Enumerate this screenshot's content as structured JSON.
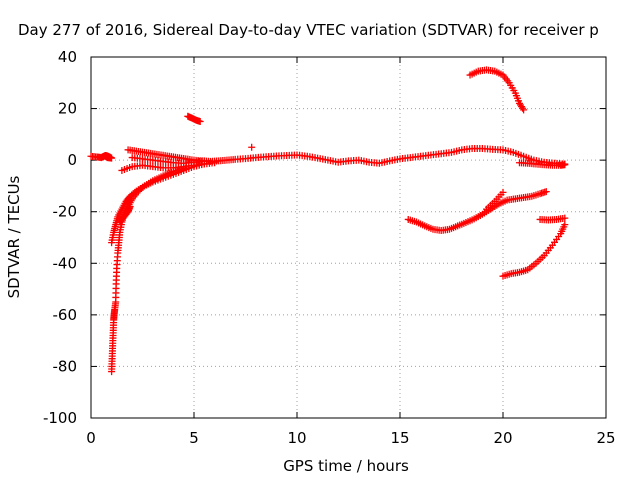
{
  "chart_data": {
    "type": "scatter",
    "title": "Day 277 of 2016, Sidereal Day-to-day VTEC variation (SDTVAR) for receiver p",
    "xlabel": "GPS time / hours",
    "ylabel": "SDTVAR / TECUs",
    "xlim": [
      0,
      25
    ],
    "ylim": [
      -100,
      40
    ],
    "xticks": [
      0,
      5,
      10,
      15,
      20,
      25
    ],
    "yticks": [
      -100,
      -80,
      -60,
      -40,
      -20,
      0,
      20,
      40
    ],
    "grid": true,
    "legend": "none",
    "marker": "plus",
    "color": "#ff0000",
    "series": [
      {
        "points": [
          [
            0.0,
            1.5
          ],
          [
            0.3,
            1.2
          ],
          [
            0.5,
            1.0
          ],
          [
            0.6,
            1.4
          ],
          [
            0.7,
            1.8
          ],
          [
            0.8,
            1.6
          ],
          [
            0.9,
            1.2
          ],
          [
            1.0,
            0.8
          ],
          [
            0.8,
            1.0
          ],
          [
            0.7,
            1.5
          ]
        ]
      },
      {
        "points": [
          [
            1.0,
            -82
          ],
          [
            1.02,
            -78
          ],
          [
            1.04,
            -74
          ],
          [
            1.06,
            -70
          ],
          [
            1.08,
            -66
          ],
          [
            1.1,
            -62
          ],
          [
            1.12,
            -60
          ],
          [
            1.15,
            -58
          ],
          [
            1.2,
            -55
          ],
          [
            1.22,
            -48
          ],
          [
            1.25,
            -42
          ],
          [
            1.3,
            -36
          ],
          [
            1.35,
            -32
          ],
          [
            1.4,
            -28
          ],
          [
            1.5,
            -24
          ],
          [
            1.6,
            -21
          ],
          [
            1.8,
            -18
          ],
          [
            2.0,
            -15
          ],
          [
            2.3,
            -12
          ],
          [
            2.6,
            -10
          ],
          [
            3.0,
            -8.5
          ],
          [
            3.5,
            -7
          ],
          [
            4.0,
            -5.5
          ],
          [
            4.5,
            -4
          ],
          [
            5.0,
            -2.5
          ],
          [
            5.5,
            -1.5
          ]
        ]
      },
      {
        "points": [
          [
            1.0,
            -32
          ],
          [
            1.1,
            -28
          ],
          [
            1.2,
            -25
          ],
          [
            1.3,
            -22
          ],
          [
            1.5,
            -19
          ],
          [
            1.7,
            -16
          ],
          [
            1.9,
            -14
          ],
          [
            2.2,
            -12
          ],
          [
            2.6,
            -10
          ],
          [
            3.0,
            -8
          ],
          [
            3.4,
            -6.5
          ],
          [
            3.8,
            -5
          ],
          [
            4.2,
            -4
          ],
          [
            4.6,
            -3
          ]
        ]
      },
      {
        "points": [
          [
            1.4,
            -24
          ],
          [
            1.6,
            -22
          ],
          [
            1.8,
            -20
          ],
          [
            1.9,
            -18
          ],
          [
            1.7,
            -21
          ],
          [
            1.5,
            -23
          ]
        ]
      },
      {
        "points": [
          [
            1.5,
            -4
          ],
          [
            2.0,
            -2.5
          ],
          [
            2.5,
            -2
          ],
          [
            3.0,
            -2.5
          ],
          [
            3.5,
            -3
          ],
          [
            4.0,
            -3
          ],
          [
            4.5,
            -2.5
          ],
          [
            5.0,
            -2
          ],
          [
            5.5,
            -1.5
          ],
          [
            6.0,
            -1
          ]
        ]
      },
      {
        "points": [
          [
            1.8,
            4
          ],
          [
            2.2,
            3.5
          ],
          [
            2.6,
            3
          ],
          [
            3.0,
            2.5
          ],
          [
            3.4,
            2
          ],
          [
            3.8,
            1.5
          ],
          [
            4.2,
            1
          ],
          [
            4.6,
            0.5
          ],
          [
            5.0,
            0
          ],
          [
            5.4,
            -0.3
          ],
          [
            5.8,
            -0.5
          ],
          [
            6.2,
            -0.3
          ],
          [
            6.6,
            0
          ],
          [
            7.0,
            0.3
          ],
          [
            7.5,
            0.6
          ],
          [
            8.0,
            1
          ],
          [
            8.5,
            1.3
          ],
          [
            9.0,
            1.6
          ],
          [
            9.5,
            1.8
          ],
          [
            10.0,
            2
          ],
          [
            10.5,
            1.5
          ],
          [
            11.0,
            0.8
          ],
          [
            11.5,
            0
          ],
          [
            12.0,
            -0.8
          ],
          [
            12.5,
            -0.3
          ],
          [
            13.0,
            0
          ],
          [
            13.5,
            -0.8
          ],
          [
            14.0,
            -1.2
          ],
          [
            14.5,
            -0.3
          ],
          [
            15.0,
            0.5
          ],
          [
            15.5,
            1
          ],
          [
            16.0,
            1.5
          ],
          [
            16.5,
            2
          ],
          [
            17.0,
            2.5
          ],
          [
            17.5,
            3
          ],
          [
            18.0,
            4
          ],
          [
            18.5,
            4.5
          ],
          [
            19.0,
            4.5
          ],
          [
            19.5,
            4.2
          ],
          [
            20.0,
            4
          ],
          [
            20.5,
            3
          ],
          [
            21.0,
            1.5
          ],
          [
            21.5,
            0
          ],
          [
            22.0,
            -0.8
          ],
          [
            22.5,
            -1.2
          ],
          [
            23.0,
            -1.5
          ]
        ]
      },
      {
        "points": [
          [
            2.0,
            1
          ],
          [
            2.5,
            0.5
          ],
          [
            3.0,
            0
          ],
          [
            3.5,
            -0.5
          ],
          [
            4.0,
            -1
          ],
          [
            4.5,
            -1.2
          ],
          [
            5.0,
            -0.8
          ],
          [
            5.5,
            -0.3
          ]
        ]
      },
      {
        "points": [
          [
            4.7,
            17
          ],
          [
            4.9,
            16.3
          ],
          [
            5.1,
            15.5
          ],
          [
            5.3,
            15
          ]
        ]
      },
      {
        "points": [
          [
            7.8,
            5
          ]
        ]
      },
      {
        "points": [
          [
            15.4,
            -23
          ],
          [
            15.8,
            -24
          ],
          [
            16.2,
            -25.5
          ],
          [
            16.6,
            -26.8
          ],
          [
            17.0,
            -27.3
          ],
          [
            17.4,
            -26.8
          ],
          [
            17.8,
            -25.5
          ],
          [
            18.2,
            -24.2
          ],
          [
            18.6,
            -22.8
          ],
          [
            19.0,
            -21
          ],
          [
            19.4,
            -19
          ],
          [
            19.8,
            -17
          ],
          [
            20.2,
            -15.5
          ],
          [
            20.6,
            -15
          ],
          [
            21.0,
            -14.5
          ],
          [
            21.4,
            -14
          ],
          [
            21.8,
            -13
          ],
          [
            22.1,
            -12.2
          ]
        ]
      },
      {
        "points": [
          [
            19.2,
            -19
          ],
          [
            19.6,
            -16
          ],
          [
            20.0,
            -12.5
          ]
        ]
      },
      {
        "points": [
          [
            18.4,
            33
          ],
          [
            18.8,
            34.5
          ],
          [
            19.2,
            35
          ],
          [
            19.6,
            34.5
          ],
          [
            20.0,
            33
          ],
          [
            20.3,
            30
          ],
          [
            20.6,
            26
          ],
          [
            20.8,
            22
          ],
          [
            21.0,
            19.5
          ]
        ]
      },
      {
        "points": [
          [
            20.0,
            -45
          ],
          [
            20.4,
            -44
          ],
          [
            20.8,
            -43.5
          ],
          [
            21.2,
            -42.5
          ],
          [
            21.6,
            -40
          ],
          [
            22.0,
            -37
          ],
          [
            22.4,
            -33
          ],
          [
            22.8,
            -28.5
          ],
          [
            23.0,
            -25
          ]
        ]
      },
      {
        "points": [
          [
            21.8,
            -23
          ],
          [
            22.2,
            -23.2
          ],
          [
            22.6,
            -23
          ],
          [
            23.0,
            -22.5
          ]
        ]
      },
      {
        "points": [
          [
            20.8,
            -1
          ],
          [
            21.2,
            -1.2
          ],
          [
            21.6,
            -1.5
          ],
          [
            22.0,
            -1.8
          ],
          [
            22.4,
            -2
          ],
          [
            22.8,
            -2
          ],
          [
            23.0,
            -1.8
          ]
        ]
      }
    ]
  }
}
